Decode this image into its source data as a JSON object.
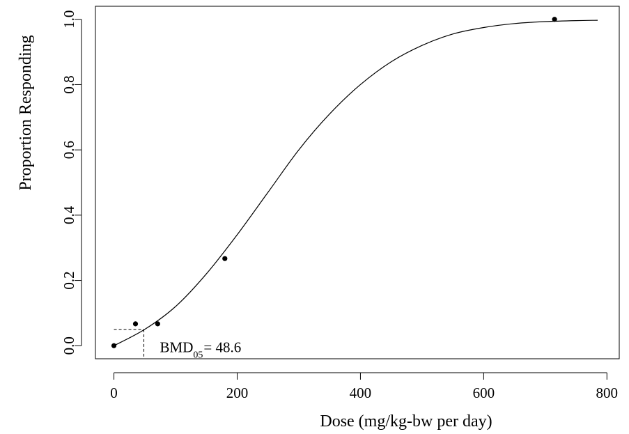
{
  "chart_data": {
    "type": "scatter",
    "title": "",
    "xlabel": "Dose (mg/kg-bw per day)",
    "ylabel": "Proportion Responding",
    "xlim": [
      -30,
      820
    ],
    "ylim": [
      -0.04,
      1.04
    ],
    "x_ticks": [
      "0",
      "200",
      "400",
      "600",
      "800"
    ],
    "y_ticks": [
      "0.0",
      "0.2",
      "0.4",
      "0.6",
      "0.8",
      "1.0"
    ],
    "grid": false,
    "series": [
      {
        "type": "scatter",
        "x": [
          0,
          35,
          71,
          180,
          715
        ],
        "y": [
          0.0,
          0.067,
          0.067,
          0.267,
          1.0
        ]
      },
      {
        "type": "line",
        "fitted_curve": true,
        "x": [
          0,
          50,
          100,
          150,
          200,
          250,
          300,
          350,
          400,
          450,
          500,
          550,
          600,
          650,
          700,
          750,
          785
        ],
        "y": [
          0.0,
          0.05,
          0.12,
          0.22,
          0.34,
          0.47,
          0.6,
          0.71,
          0.8,
          0.87,
          0.92,
          0.955,
          0.975,
          0.987,
          0.993,
          0.996,
          0.997
        ]
      }
    ],
    "annotations": [
      {
        "label": "BMD",
        "subscript": "05",
        "text": "= 48.6",
        "bmd": 48.6,
        "bmr": 0.05
      }
    ]
  }
}
